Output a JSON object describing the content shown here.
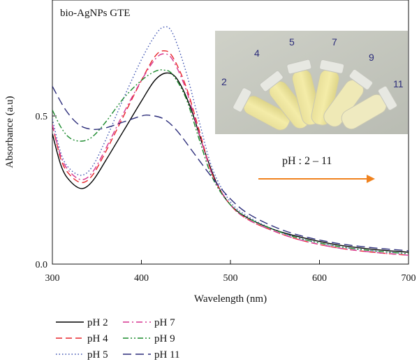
{
  "chart_data": {
    "type": "line",
    "title": "bio-AgNPs GTE",
    "xlabel": "Wavelength (nm)",
    "ylabel": "Absorbance (a.u)",
    "xlim": [
      300,
      700
    ],
    "ylim": [
      0.0,
      0.85
    ],
    "xticks": [
      300,
      400,
      500,
      600,
      700
    ],
    "xtick_labels": [
      "300",
      "400",
      "500",
      "600",
      "700"
    ],
    "yticks": [
      0.0,
      0.5
    ],
    "ytick_labels": [
      "0.0",
      "0.5"
    ],
    "grid": false,
    "legend_position": "bottom-left, below plot, two columns",
    "series": [
      {
        "name": "pH 2",
        "color": "#000000",
        "dash": "solid",
        "x": [
          300,
          310,
          320,
          333,
          345,
          360,
          380,
          400,
          415,
          428,
          440,
          455,
          470,
          485,
          500,
          520,
          550,
          580,
          620,
          660,
          700
        ],
        "y": [
          0.44,
          0.33,
          0.28,
          0.255,
          0.28,
          0.35,
          0.45,
          0.55,
          0.62,
          0.645,
          0.625,
          0.53,
          0.39,
          0.27,
          0.2,
          0.155,
          0.115,
          0.09,
          0.065,
          0.05,
          0.04
        ]
      },
      {
        "name": "pH 4",
        "color": "#e8252b",
        "dash": "dashed",
        "x": [
          300,
          310,
          320,
          333,
          345,
          360,
          380,
          400,
          415,
          425,
          435,
          450,
          465,
          480,
          500,
          520,
          550,
          580,
          620,
          660,
          700
        ],
        "y": [
          0.47,
          0.35,
          0.3,
          0.275,
          0.3,
          0.38,
          0.5,
          0.62,
          0.7,
          0.72,
          0.7,
          0.6,
          0.45,
          0.3,
          0.2,
          0.15,
          0.11,
          0.08,
          0.055,
          0.04,
          0.03
        ]
      },
      {
        "name": "pH 5",
        "color": "#3a4fb0",
        "dash": "dotted",
        "x": [
          300,
          310,
          320,
          333,
          345,
          360,
          380,
          400,
          415,
          425,
          435,
          450,
          465,
          480,
          500,
          520,
          550,
          580,
          620,
          660,
          700
        ],
        "y": [
          0.49,
          0.37,
          0.32,
          0.3,
          0.33,
          0.42,
          0.56,
          0.69,
          0.77,
          0.8,
          0.78,
          0.65,
          0.48,
          0.32,
          0.21,
          0.16,
          0.115,
          0.085,
          0.06,
          0.045,
          0.035
        ]
      },
      {
        "name": "pH 7",
        "color": "#d6338f",
        "dash": "dashdot",
        "x": [
          300,
          310,
          320,
          333,
          345,
          360,
          380,
          400,
          415,
          425,
          435,
          450,
          465,
          480,
          500,
          520,
          550,
          580,
          620,
          660,
          700
        ],
        "y": [
          0.47,
          0.36,
          0.31,
          0.285,
          0.31,
          0.39,
          0.51,
          0.62,
          0.69,
          0.71,
          0.69,
          0.59,
          0.44,
          0.3,
          0.2,
          0.15,
          0.11,
          0.08,
          0.055,
          0.04,
          0.03
        ]
      },
      {
        "name": "pH 9",
        "color": "#1a8a2c",
        "dash": "dashdotdot",
        "x": [
          300,
          310,
          320,
          333,
          345,
          360,
          380,
          400,
          415,
          425,
          435,
          450,
          465,
          480,
          500,
          520,
          550,
          580,
          620,
          660,
          700
        ],
        "y": [
          0.52,
          0.46,
          0.425,
          0.415,
          0.43,
          0.48,
          0.56,
          0.62,
          0.65,
          0.655,
          0.64,
          0.56,
          0.42,
          0.29,
          0.2,
          0.155,
          0.115,
          0.085,
          0.06,
          0.045,
          0.035
        ]
      },
      {
        "name": "pH 11",
        "color": "#2b2c7a",
        "dash": "longdash",
        "x": [
          300,
          315,
          330,
          345,
          360,
          380,
          400,
          410,
          425,
          440,
          460,
          480,
          500,
          520,
          550,
          580,
          620,
          660,
          700
        ],
        "y": [
          0.6,
          0.52,
          0.47,
          0.455,
          0.46,
          0.48,
          0.5,
          0.502,
          0.49,
          0.45,
          0.37,
          0.29,
          0.22,
          0.17,
          0.125,
          0.095,
          0.07,
          0.055,
          0.045
        ]
      }
    ]
  },
  "inset": {
    "tube_labels": [
      "2",
      "4",
      "5",
      "7",
      "9",
      "11"
    ],
    "arrow_label": "pH : 2 – 11",
    "arrow_color": "#f0821e"
  }
}
